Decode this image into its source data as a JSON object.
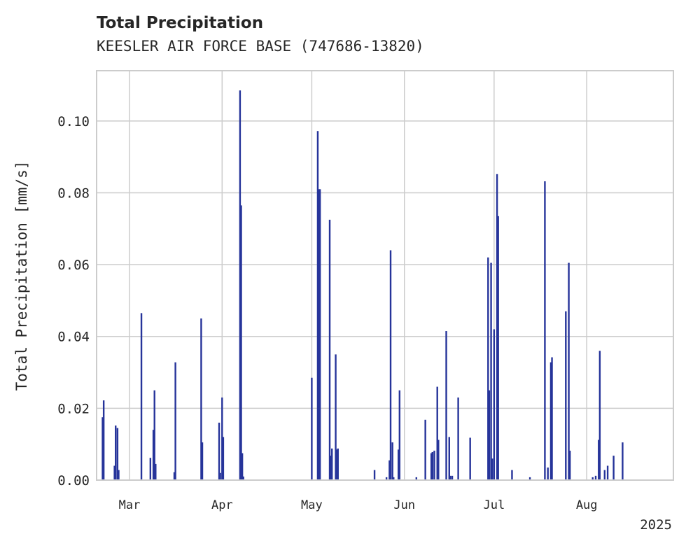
{
  "chart_data": {
    "type": "bar",
    "title": "Total Precipitation",
    "subtitle": "KEESLER AIR FORCE BASE (747686-13820)",
    "ylabel": "Total Precipitation [mm/s]",
    "xlabel": "",
    "year_label": "2025",
    "ylim": [
      0,
      0.114
    ],
    "yticks": [
      "0.00",
      "0.02",
      "0.04",
      "0.06",
      "0.08",
      "0.10"
    ],
    "xlim": [
      "2025-02-18",
      "2025-08-30"
    ],
    "xticks": [
      {
        "date": "2025-03-01",
        "label": "Mar"
      },
      {
        "date": "2025-04-01",
        "label": "Apr"
      },
      {
        "date": "2025-05-01",
        "label": "May"
      },
      {
        "date": "2025-06-01",
        "label": "Jun"
      },
      {
        "date": "2025-07-01",
        "label": "Jul"
      },
      {
        "date": "2025-08-01",
        "label": "Aug"
      }
    ],
    "grid": true,
    "bar_color": "#26349a",
    "series": [
      {
        "points": [
          [
            "2025-02-20",
            0.0175
          ],
          [
            "2025-02-20",
            0.0222
          ],
          [
            "2025-02-24",
            0.004
          ],
          [
            "2025-02-24",
            0.0152
          ],
          [
            "2025-02-25",
            0.0145
          ],
          [
            "2025-02-25",
            0.0028
          ],
          [
            "2025-03-05",
            0.0465
          ],
          [
            "2025-03-08",
            0.0062
          ],
          [
            "2025-03-09",
            0.014
          ],
          [
            "2025-03-09",
            0.025
          ],
          [
            "2025-03-09",
            0.0045
          ],
          [
            "2025-03-16",
            0.0022
          ],
          [
            "2025-03-16",
            0.0328
          ],
          [
            "2025-03-25",
            0.045
          ],
          [
            "2025-03-25",
            0.0105
          ],
          [
            "2025-03-31",
            0.016
          ],
          [
            "2025-03-31",
            0.002
          ],
          [
            "2025-04-01",
            0.023
          ],
          [
            "2025-04-01",
            0.012
          ],
          [
            "2025-04-07",
            0.1085
          ],
          [
            "2025-04-07",
            0.0765
          ],
          [
            "2025-04-07",
            0.0075
          ],
          [
            "2025-04-07",
            0.001
          ],
          [
            "2025-05-01",
            0.0285
          ],
          [
            "2025-05-03",
            0.0972
          ],
          [
            "2025-05-03",
            0.081
          ],
          [
            "2025-05-03",
            0.081
          ],
          [
            "2025-05-07",
            0.0725
          ],
          [
            "2025-05-07",
            0.0068
          ],
          [
            "2025-05-07",
            0.0088
          ],
          [
            "2025-05-09",
            0.035
          ],
          [
            "2025-05-09",
            0.0085
          ],
          [
            "2025-05-09",
            0.0088
          ],
          [
            "2025-05-22",
            0.0028
          ],
          [
            "2025-05-26",
            0.0008
          ],
          [
            "2025-05-27",
            0.0055
          ],
          [
            "2025-05-27",
            0.064
          ],
          [
            "2025-05-28",
            0.0105
          ],
          [
            "2025-05-28",
            0.0008
          ],
          [
            "2025-05-30",
            0.0085
          ],
          [
            "2025-05-30",
            0.025
          ],
          [
            "2025-06-05",
            0.0008
          ],
          [
            "2025-06-08",
            0.0168
          ],
          [
            "2025-06-10",
            0.0075
          ],
          [
            "2025-06-10",
            0.0078
          ],
          [
            "2025-06-11",
            0.0082
          ],
          [
            "2025-06-12",
            0.026
          ],
          [
            "2025-06-12",
            0.0112
          ],
          [
            "2025-06-15",
            0.0415
          ],
          [
            "2025-06-16",
            0.012
          ],
          [
            "2025-06-16",
            0.0012
          ],
          [
            "2025-06-17",
            0.0012
          ],
          [
            "2025-06-19",
            0.023
          ],
          [
            "2025-06-23",
            0.0118
          ],
          [
            "2025-06-29",
            0.062
          ],
          [
            "2025-06-29",
            0.025
          ],
          [
            "2025-06-30",
            0.0605
          ],
          [
            "2025-06-30",
            0.006
          ],
          [
            "2025-07-01",
            0.042
          ],
          [
            "2025-07-02",
            0.0852
          ],
          [
            "2025-07-02",
            0.0735
          ],
          [
            "2025-07-07",
            0.0028
          ],
          [
            "2025-07-13",
            0.0008
          ],
          [
            "2025-07-18",
            0.0832
          ],
          [
            "2025-07-19",
            0.0035
          ],
          [
            "2025-07-20",
            0.0328
          ],
          [
            "2025-07-20",
            0.0342
          ],
          [
            "2025-07-25",
            0.047
          ],
          [
            "2025-07-26",
            0.0605
          ],
          [
            "2025-07-26",
            0.0082
          ],
          [
            "2025-08-03",
            0.0008
          ],
          [
            "2025-08-04",
            0.0012
          ],
          [
            "2025-08-05",
            0.0112
          ],
          [
            "2025-08-05",
            0.036
          ],
          [
            "2025-08-07",
            0.0028
          ],
          [
            "2025-08-08",
            0.004
          ],
          [
            "2025-08-10",
            0.0068
          ],
          [
            "2025-08-13",
            0.0105
          ]
        ]
      }
    ]
  }
}
